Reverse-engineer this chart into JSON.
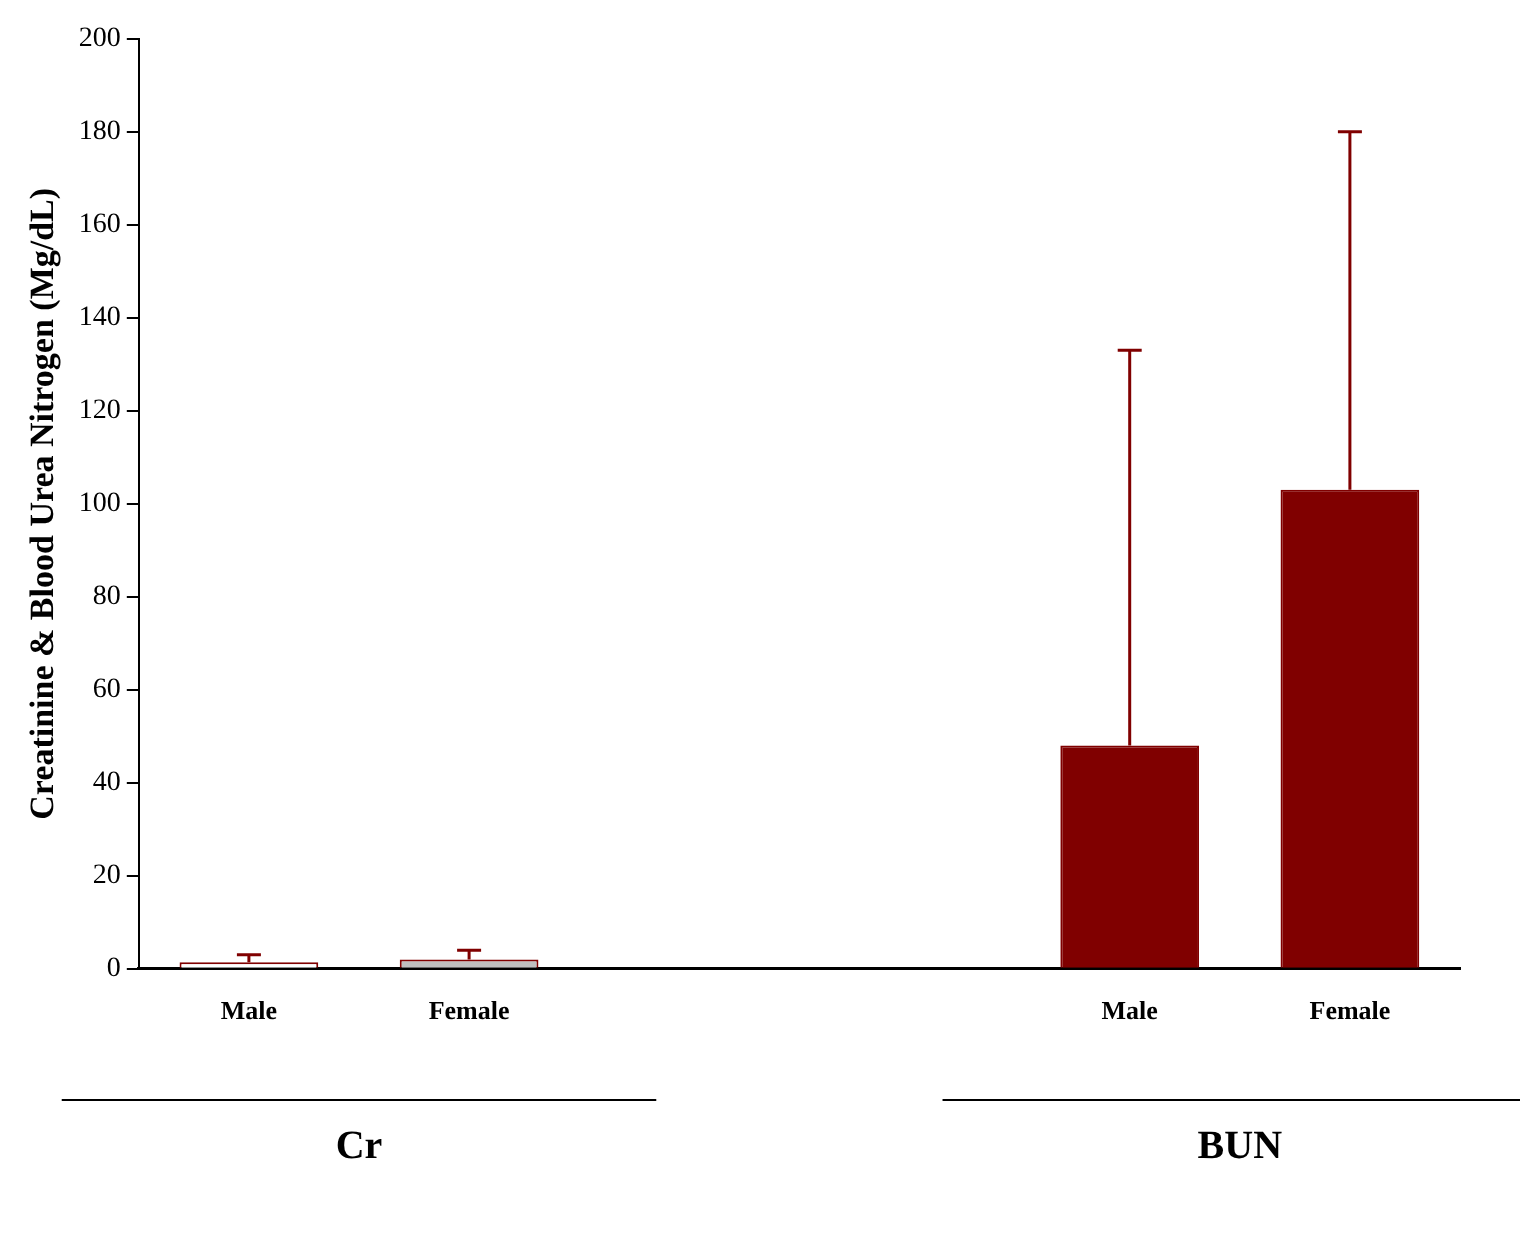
{
  "chart_data": {
    "type": "bar",
    "ylabel": "Creatinine & Blood Urea Nitrogen (Mg/dL)",
    "categories": [
      "Male",
      "Female",
      null,
      null,
      "Male",
      "Female"
    ],
    "series": [
      {
        "color": "#800000",
        "colors": [
          "#ffffff",
          "#c0c0c0",
          null,
          null,
          "#800000",
          "#800000"
        ],
        "values": [
          1.4,
          2,
          null,
          null,
          48,
          103
        ],
        "errors": [
          [
            1.4,
            3
          ],
          [
            2,
            4
          ],
          null,
          null,
          [
            48,
            133
          ],
          [
            103,
            180
          ]
        ]
      }
    ],
    "annotations": [
      "Cr",
      "BUN"
    ],
    "ylim": [
      0,
      200
    ],
    "yticks": [
      0,
      20,
      40,
      60,
      80,
      100,
      120,
      140,
      160,
      180,
      200
    ],
    "grid": false,
    "legend": false
  }
}
